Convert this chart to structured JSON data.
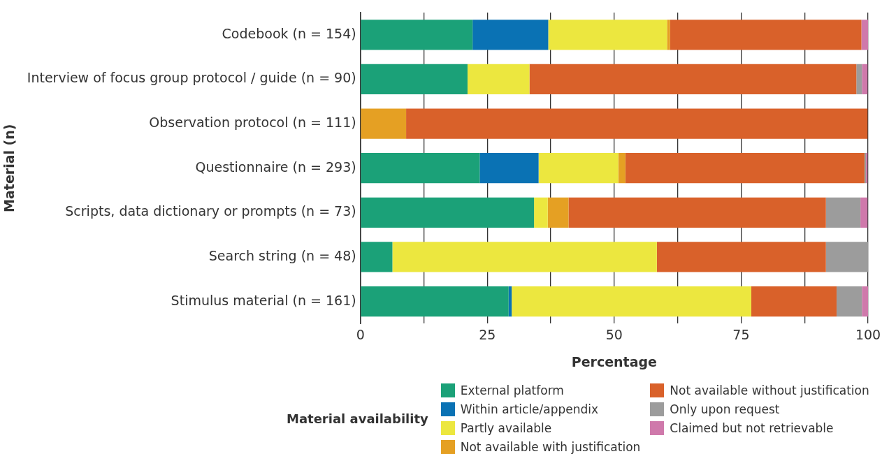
{
  "chart_data": {
    "type": "bar",
    "orientation": "horizontal",
    "stacked": true,
    "xlabel": "Percentage",
    "ylabel": "Material (n)",
    "legend_title": "Material availability",
    "legend": "bottom",
    "grid": "x",
    "categories": [
      "Codebook (n = 154)",
      "Interview of focus group protocol / guide (n = 90)",
      "Observation protocol (n = 111)",
      "Questionnaire (n = 293)",
      "Scripts, data dictionary or prompts (n = 73)",
      "Search string (n = 48)",
      "Stimulus material (n = 161)"
    ],
    "xlim": [
      0,
      100
    ],
    "xticks": [
      0,
      {
        "value": 12.5,
        "label": null
      },
      25,
      {
        "value": 37.5,
        "label": null
      },
      50,
      {
        "value": 62.5,
        "label": null
      },
      75,
      {
        "value": 87.5,
        "label": null
      },
      100
    ],
    "series": [
      {
        "name": "External platform",
        "color": "#1ba178",
        "values": [
          22.1,
          21.1,
          0,
          23.5,
          34.2,
          6.3,
          29.2
        ]
      },
      {
        "name": "Within article/appendix",
        "color": "#0a72b4",
        "values": [
          14.9,
          0,
          0,
          11.6,
          0,
          0,
          0.6
        ]
      },
      {
        "name": "Partly available",
        "color": "#ece73f",
        "values": [
          23.4,
          12.2,
          0,
          15.7,
          2.7,
          52.1,
          47.2
        ]
      },
      {
        "name": "Not available with justification",
        "color": "#e5a023",
        "values": [
          0.6,
          0,
          9.0,
          1.4,
          4.1,
          0,
          0
        ]
      },
      {
        "name": "Not available without justification",
        "color": "#d9612a",
        "values": [
          37.7,
          64.4,
          90.9,
          47.1,
          50.7,
          33.3,
          16.8
        ]
      },
      {
        "name": "Only upon request",
        "color": "#9c9c9c",
        "values": [
          0,
          1.1,
          0,
          0.3,
          6.8,
          8.3,
          5.0
        ]
      },
      {
        "name": "Claimed but not retrievable",
        "color": "#cf79ab",
        "values": [
          1.3,
          1.1,
          0,
          0.3,
          1.4,
          0,
          1.2
        ]
      }
    ]
  }
}
